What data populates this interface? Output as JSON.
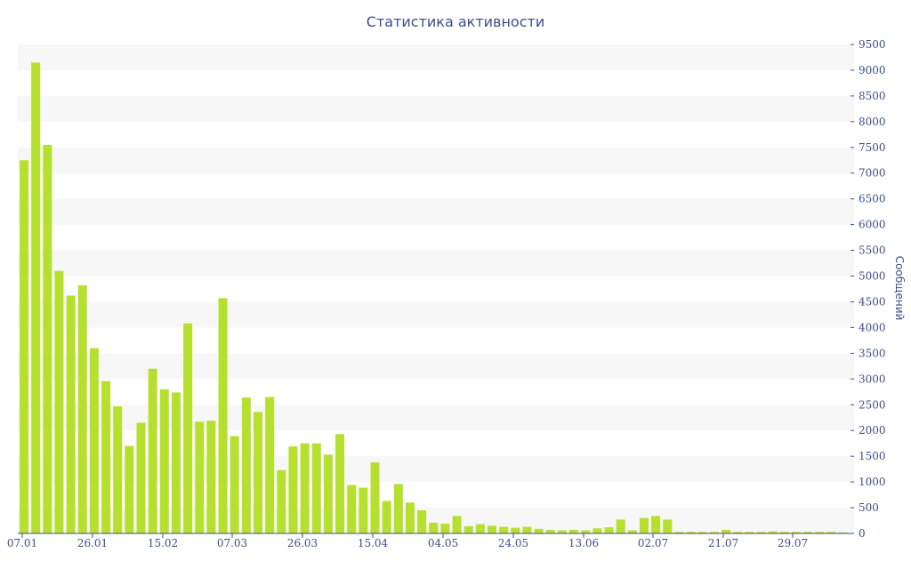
{
  "chart_data": {
    "type": "bar",
    "title": "Статистика активности",
    "ylabel": "Сообщений",
    "xlabel": "",
    "ylim": [
      0,
      9500
    ],
    "y_ticks": [
      0,
      500,
      1000,
      1500,
      2000,
      2500,
      3000,
      3500,
      4000,
      4500,
      5000,
      5500,
      6000,
      6500,
      7000,
      7500,
      8000,
      8500,
      9000,
      9500
    ],
    "x_tick_labels": [
      "07.01",
      "26.01",
      "15.02",
      "07.03",
      "26.03",
      "15.04",
      "04.05",
      "24.05",
      "13.06",
      "02.07",
      "21.07",
      "29.07"
    ],
    "bar_color": "#b5e02d",
    "band_color": "#f7f7f7",
    "label_color": "#3e4d8a",
    "grid": "alternating horizontal bands",
    "values": [
      7250,
      9150,
      7550,
      5100,
      4620,
      4820,
      3600,
      2960,
      2470,
      1700,
      2150,
      3200,
      2800,
      2740,
      4080,
      2170,
      2190,
      4570,
      1890,
      2640,
      2360,
      2650,
      1230,
      1690,
      1750,
      1750,
      1530,
      1930,
      940,
      890,
      1380,
      630,
      960,
      600,
      450,
      210,
      190,
      340,
      140,
      180,
      150,
      130,
      110,
      130,
      90,
      70,
      60,
      70,
      60,
      100,
      120,
      270,
      60,
      300,
      340,
      270,
      30,
      30,
      30,
      30,
      70,
      30,
      30,
      30,
      40,
      30,
      30,
      30,
      30,
      30,
      20
    ]
  }
}
